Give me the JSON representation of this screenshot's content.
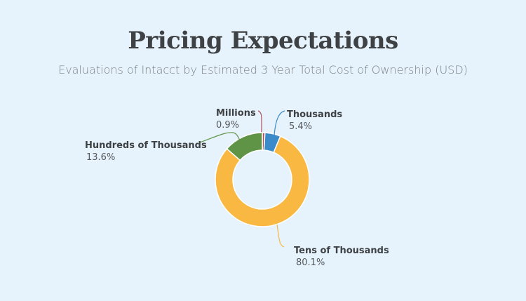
{
  "chart_data": {
    "type": "pie",
    "donut": true,
    "title": "Pricing Expectations",
    "subtitle": "Evaluations of Intacct by Estimated 3 Year Total Cost of Ownership (USD)",
    "slices": [
      {
        "name": "Millions",
        "value": 0.9,
        "label": "0.9%",
        "color": "#b14f5a"
      },
      {
        "name": "Thousands",
        "value": 5.4,
        "label": "5.4%",
        "color": "#3b8bcb"
      },
      {
        "name": "Tens of Thousands",
        "value": 80.1,
        "label": "80.1%",
        "color": "#f8b841"
      },
      {
        "name": "Hundreds of Thousands",
        "value": 13.6,
        "label": "13.6%",
        "color": "#5f9447"
      }
    ]
  }
}
